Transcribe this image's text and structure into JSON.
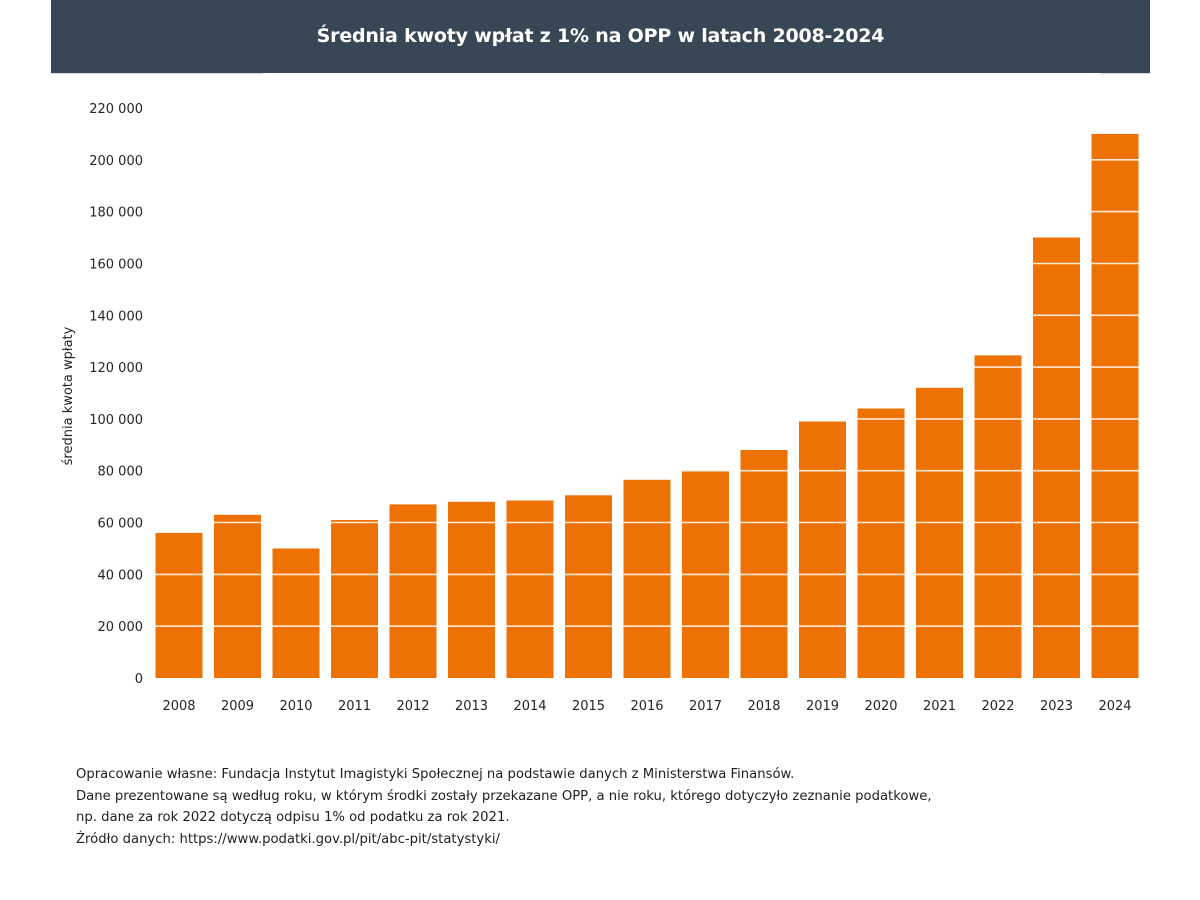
{
  "header": {
    "title": "Średnia kwoty wpłat z 1% na OPP w latach 2008-2024"
  },
  "colors": {
    "header_bg": "#384756",
    "bar": "#EE7203",
    "gridline": "#ffffff"
  },
  "chart_data": {
    "type": "bar",
    "title": "Średnia kwoty wpłat z 1% na OPP w latach 2008-2024",
    "xlabel": "",
    "ylabel": "średnia kwota wpłaty",
    "categories": [
      "2008",
      "2009",
      "2010",
      "2011",
      "2012",
      "2013",
      "2014",
      "2015",
      "2016",
      "2017",
      "2018",
      "2019",
      "2020",
      "2021",
      "2022",
      "2023",
      "2024"
    ],
    "values": [
      56000,
      63000,
      50000,
      61000,
      67000,
      68000,
      68500,
      70500,
      76500,
      80000,
      88000,
      99000,
      104000,
      112000,
      124500,
      170000,
      210000
    ],
    "ylim": [
      0,
      220000
    ],
    "yticks": [
      0,
      20000,
      40000,
      60000,
      80000,
      100000,
      120000,
      140000,
      160000,
      180000,
      200000,
      220000
    ],
    "ytick_labels": [
      "0",
      "20 000",
      "40 000",
      "60 000",
      "80 000",
      "100 000",
      "120 000",
      "140 000",
      "160 000",
      "180 000",
      "200 000",
      "220 000"
    ],
    "grid": "horizontal white lines over bars",
    "legend": "none"
  },
  "footnote": {
    "lines": [
      "Opracowanie własne: Fundacja Instytut Imagistyki Społecznej na podstawie danych z Ministerstwa Finansów.",
      "Dane prezentowane są według roku, w którym środki zostały przekazane OPP, a nie roku, którego dotyczyło zeznanie podatkowe,",
      "np. dane za rok 2022 dotyczą odpisu 1% od podatku za rok 2021.",
      "Źródło danych: https://www.podatki.gov.pl/pit/abc-pit/statystyki/"
    ]
  }
}
